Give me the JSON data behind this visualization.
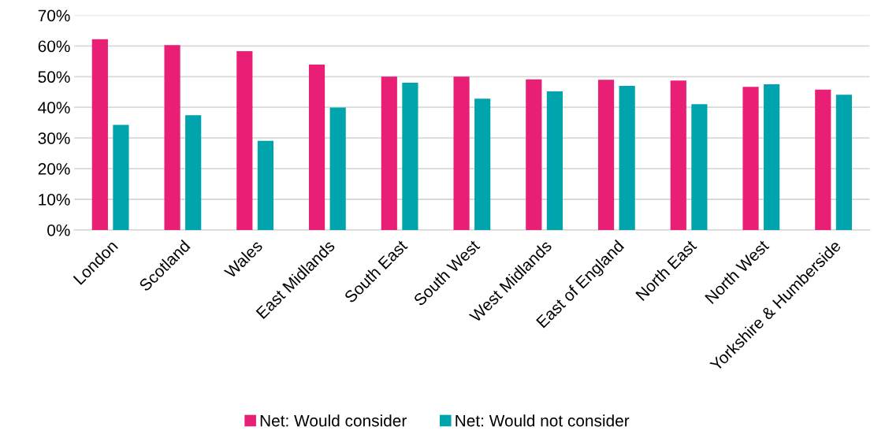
{
  "chart_data": {
    "type": "bar",
    "categories": [
      "London",
      "Scotland",
      "Wales",
      "East Midlands",
      "South East",
      "South West",
      "West Midlands",
      "East of England",
      "North East",
      "North West",
      "Yorkshire & Humberside"
    ],
    "series": [
      {
        "name": "Net: Would consider",
        "color": "#e91e75",
        "values": [
          62.2,
          60.3,
          58.3,
          53.9,
          50.0,
          50.0,
          49.1,
          49.0,
          48.7,
          46.7,
          45.8
        ]
      },
      {
        "name": "Net: Would not consider",
        "color": "#00a4ac",
        "values": [
          34.3,
          37.4,
          29.1,
          39.9,
          48.0,
          42.8,
          45.2,
          47.0,
          41.0,
          47.5,
          44.1
        ]
      }
    ],
    "ylim": [
      0,
      70
    ],
    "yticks": [
      {
        "value": 0,
        "label": "0%"
      },
      {
        "value": 10,
        "label": "10%"
      },
      {
        "value": 20,
        "label": "20%"
      },
      {
        "value": 30,
        "label": "30%"
      },
      {
        "value": 40,
        "label": "40%"
      },
      {
        "value": 50,
        "label": "50%"
      },
      {
        "value": 60,
        "label": "60%"
      },
      {
        "value": 70,
        "label": "70%"
      }
    ],
    "grid": "y",
    "legend": "bottom"
  }
}
